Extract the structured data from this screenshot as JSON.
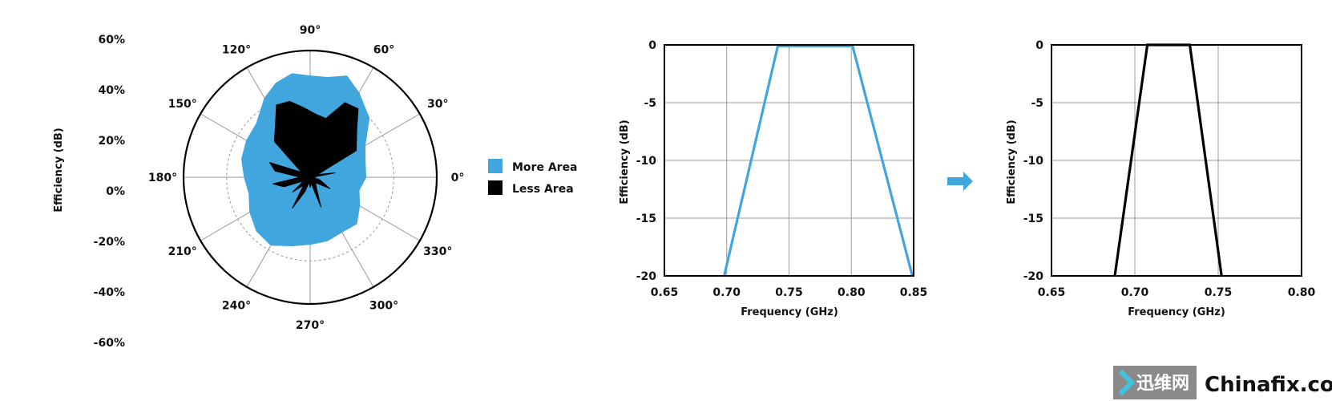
{
  "colors": {
    "more_area": "#41a5de",
    "less_area": "#000000",
    "arrow": "#41a5de",
    "grid": "#9a9a9a",
    "watermark_box": "#8a8a8a"
  },
  "legend": {
    "more_area_label": "More Area",
    "less_area_label": "Less Area"
  },
  "arrow_icon": "right-arrow-icon",
  "watermark": {
    "logo_icon": "chevron-right-icon",
    "brand_cn": "迅维网",
    "brand_en": "Chinafix.com"
  },
  "chart_data": [
    {
      "type": "polar",
      "ylabel": "Efficiency (dB)",
      "radial_ticks": [
        "60%",
        "40%",
        "20%",
        "0%",
        "-20%",
        "-40%",
        "-60%"
      ],
      "angle_ticks": [
        "0°",
        "30°",
        "60°",
        "90°",
        "120°",
        "150°",
        "180°",
        "210°",
        "240°",
        "270°",
        "300°",
        "330°"
      ],
      "grid": true,
      "legend_position": "right",
      "series": [
        {
          "name": "More Area",
          "angles": [
            0,
            15,
            30,
            45,
            60,
            70,
            80,
            90,
            100,
            110,
            120,
            135,
            150,
            165,
            180,
            195,
            210,
            225,
            240,
            255,
            270,
            285,
            300,
            315,
            330,
            345
          ],
          "r": [
            0.44,
            0.45,
            0.5,
            0.66,
            0.77,
            0.85,
            0.8,
            0.8,
            0.83,
            0.79,
            0.72,
            0.6,
            0.58,
            0.56,
            0.52,
            0.5,
            0.55,
            0.6,
            0.62,
            0.56,
            0.53,
            0.52,
            0.5,
            0.52,
            0.45,
            0.4
          ]
        },
        {
          "name": "Less Area",
          "angles": [
            0,
            10,
            20,
            30,
            45,
            55,
            65,
            75,
            85,
            95,
            105,
            115,
            125,
            135,
            150,
            160,
            170,
            180,
            190,
            200,
            210,
            220,
            230,
            240,
            250,
            260,
            270,
            280,
            290,
            300,
            315,
            330,
            345,
            355
          ],
          "r": [
            0.02,
            0.2,
            0.06,
            0.42,
            0.52,
            0.66,
            0.65,
            0.48,
            0.5,
            0.55,
            0.62,
            0.63,
            0.48,
            0.4,
            0.08,
            0.34,
            0.28,
            0.08,
            0.3,
            0.22,
            0.06,
            0.18,
            0.08,
            0.28,
            0.12,
            0.04,
            0.08,
            0.05,
            0.25,
            0.1,
            0.06,
            0.18,
            0.08,
            0.03
          ]
        }
      ]
    },
    {
      "type": "line",
      "xlabel": "Frequency (GHz)",
      "ylabel": "Efficiency (dB)",
      "x_ticks": [
        "0.65",
        "0.70",
        "0.75",
        "0.80",
        "0.85"
      ],
      "y_ticks": [
        "0",
        "-5",
        "-10",
        "-15",
        "-20"
      ],
      "xlim": [
        0.65,
        0.85
      ],
      "ylim": [
        -20,
        0
      ],
      "grid": true,
      "series": [
        {
          "color": "#41a5de",
          "x": [
            0.698,
            0.741,
            0.801,
            0.849
          ],
          "y": [
            -20,
            -0.1,
            -0.1,
            -20
          ]
        }
      ]
    },
    {
      "type": "line",
      "xlabel": "Frequency (GHz)",
      "ylabel": "Efficiency (dB)",
      "x_ticks": [
        "0.65",
        "0.70",
        "0.75",
        "0.80"
      ],
      "y_ticks": [
        "0",
        "-5",
        "-10",
        "-15",
        "-20"
      ],
      "xlim": [
        0.65,
        0.8
      ],
      "ylim": [
        -20,
        0
      ],
      "grid": true,
      "series": [
        {
          "color": "#000000",
          "x": [
            0.688,
            0.7075,
            0.733,
            0.752
          ],
          "y": [
            -20,
            0,
            0,
            -20
          ]
        }
      ]
    }
  ]
}
